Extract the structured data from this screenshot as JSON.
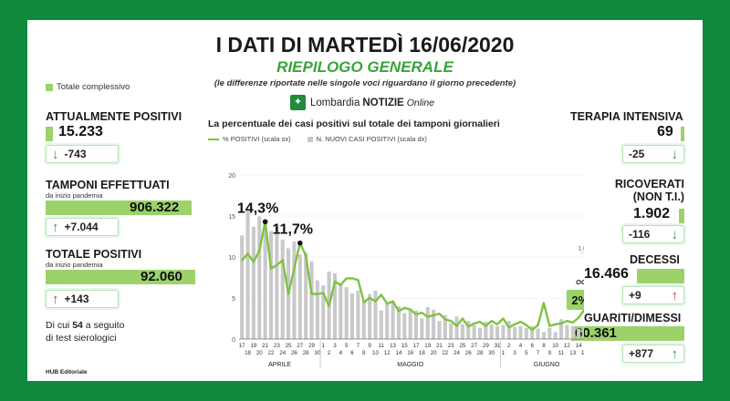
{
  "header": {
    "title": "I DATI DI MARTEDÌ 16/06/2020",
    "subtitle": "RIEPILOGO GENERALE",
    "note": "(le differenze riportate nelle singole voci riguardano il giorno precedente)"
  },
  "legend_total": "Totale complessivo",
  "logo": {
    "part1": "Lombardia",
    "part2": "NOTIZIE",
    "part3": "Online"
  },
  "left": {
    "positivi": {
      "label": "ATTUALMENTE POSITIVI",
      "value": "15.233",
      "delta": "-743"
    },
    "tamponi": {
      "label": "TAMPONI EFFETTUATI",
      "sub": "da inizio pandemia",
      "value": "906.322",
      "delta": "+7.044"
    },
    "totale": {
      "label": "TOTALE POSITIVI",
      "sub": "da inizio pandemia",
      "value": "92.060",
      "delta": "+143"
    },
    "sierologici": {
      "pre": "Di cui",
      "num": "54",
      "post": "a seguito",
      "line2": "di test sierologici"
    }
  },
  "right": {
    "terapia": {
      "label": "TERAPIA INTENSIVA",
      "value": "69",
      "delta": "-25"
    },
    "ricoverati": {
      "label1": "RICOVERATI",
      "label2": "(NON T.I.)",
      "value": "1.902",
      "delta": "-116"
    },
    "decessi": {
      "label": "DECESSI",
      "value": "16.466",
      "delta": "+9"
    },
    "guariti": {
      "label": "GUARITI/DIMESSI",
      "value": "60.361",
      "delta": "+877"
    }
  },
  "footer": "HUB Editoriale",
  "colors": {
    "background": "#0f8a3c",
    "accent": "#7fc242",
    "bar": "#c9c9c9",
    "panel_bar": "#9bd36a",
    "down": "#2e9a3a",
    "up": "#c0392b"
  },
  "chart_data": {
    "type": "bar",
    "title": "La percentuale dei casi positivi sul totale dei tamponi giornalieri",
    "legend": [
      "% POSITIVI (scala sx)",
      "N. NUOVI CASI POSITIVI (scala dx)"
    ],
    "y_left": {
      "ticks": [
        "0",
        "5",
        "10",
        "15",
        "20"
      ],
      "ylim": [
        0,
        20
      ]
    },
    "y_right": {
      "ticks": [
        "1.000"
      ]
    },
    "x_top": [
      "17",
      "19",
      "21",
      "23",
      "25",
      "27",
      "29",
      "1",
      "3",
      "5",
      "7",
      "9",
      "11",
      "13",
      "15",
      "17",
      "19",
      "21",
      "23",
      "25",
      "27",
      "29",
      "31",
      "2",
      "4",
      "6",
      "8",
      "10",
      "12",
      "14",
      "16"
    ],
    "x_bottom": [
      "18",
      "20",
      "22",
      "24",
      "26",
      "28",
      "30",
      "2",
      "4",
      "6",
      "8",
      "10",
      "12",
      "14",
      "16",
      "18",
      "20",
      "22",
      "24",
      "26",
      "28",
      "30",
      "1",
      "3",
      "5",
      "7",
      "9",
      "11",
      "13",
      "15"
    ],
    "months": [
      "APRILE",
      "MAGGIO",
      "GIUGNO"
    ],
    "annotations": [
      {
        "label": "14,3%",
        "index": 4,
        "value": 14.3
      },
      {
        "label": "11,7%",
        "index": 10,
        "value": 11.7
      }
    ],
    "today": {
      "label": "OGGI",
      "value_label": "2%",
      "index": 60,
      "value": 2.0
    },
    "series": [
      {
        "name": "% POSITIVI (scala sx)",
        "type": "line",
        "values": [
          9.6,
          10.4,
          9.4,
          10.8,
          14.3,
          8.6,
          9.0,
          9.6,
          5.5,
          8.6,
          11.7,
          10.2,
          5.5,
          5.5,
          5.6,
          4.0,
          7.0,
          6.6,
          7.4,
          7.4,
          7.2,
          4.5,
          5.0,
          4.6,
          5.4,
          4.3,
          4.6,
          3.4,
          3.8,
          3.6,
          3.0,
          3.2,
          2.7,
          2.9,
          3.1,
          2.4,
          2.2,
          1.6,
          2.5,
          1.5,
          1.9,
          2.1,
          1.6,
          2.2,
          1.8,
          2.5,
          1.4,
          1.8,
          2.1,
          1.7,
          1.1,
          1.7,
          4.4,
          1.6,
          1.8,
          1.9,
          2.2,
          2.0,
          2.6,
          3.6,
          2.0
        ]
      },
      {
        "name": "N. NUOVI CASI POSITIVI (scala dx)",
        "type": "bar",
        "values": [
          1200,
          1480,
          1300,
          1420,
          1350,
          1250,
          1300,
          1150,
          1050,
          1130,
          980,
          1000,
          900,
          680,
          620,
          780,
          760,
          640,
          600,
          530,
          560,
          440,
          520,
          560,
          330,
          400,
          430,
          380,
          300,
          350,
          330,
          240,
          370,
          340,
          210,
          280,
          180,
          260,
          170,
          210,
          160,
          130,
          200,
          170,
          150,
          160,
          210,
          140,
          150,
          130,
          150,
          120,
          80,
          130,
          80,
          230,
          160,
          150,
          120,
          150,
          143
        ]
      }
    ]
  }
}
